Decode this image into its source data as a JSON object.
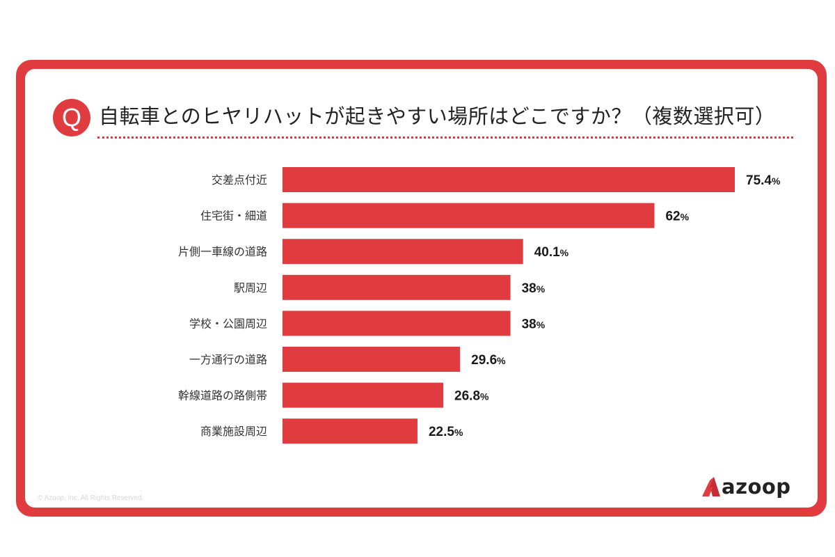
{
  "question": {
    "badge": "Q",
    "title": "自転車とのヒヤリハットが起きやすい場所はどこですか？（複数選択可）"
  },
  "chart_data": {
    "type": "bar",
    "orientation": "horizontal",
    "categories": [
      "交差点付近",
      "住宅街・細道",
      "片側一車線の道路",
      "駅周辺",
      "学校・公園周辺",
      "一方通行の道路",
      "幹線道路の路側帯",
      "商業施設周辺"
    ],
    "values": [
      75.4,
      62,
      40.1,
      38,
      38,
      29.6,
      26.8,
      22.5
    ],
    "value_labels": [
      "75.4",
      "62",
      "40.1",
      "38",
      "38",
      "29.6",
      "26.8",
      "22.5"
    ],
    "unit": "%",
    "title": "自転車とのヒヤリハットが起きやすい場所はどこですか？（複数選択可）",
    "xlabel": "",
    "ylabel": "",
    "xlim": [
      0,
      100
    ],
    "grid": false,
    "legend": "none",
    "bar_color": "#e03c3f"
  },
  "footer": {
    "copyright": "© Azoop, Inc. All Rights Reserved.",
    "logo_text": "azoop"
  },
  "colors": {
    "accent": "#e03c3f",
    "text": "#222222"
  },
  "icons": {
    "logo_mark": "azoop-logo-icon"
  }
}
